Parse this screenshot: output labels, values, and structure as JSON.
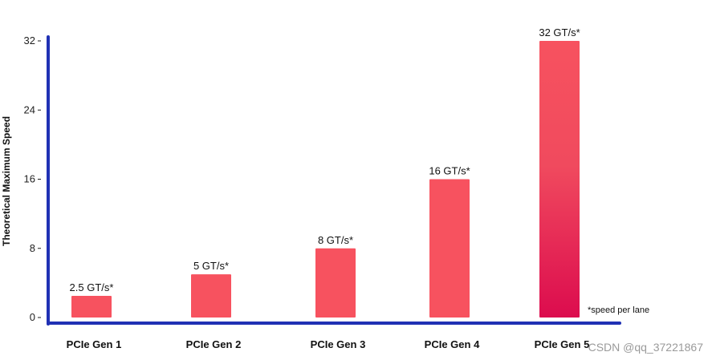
{
  "chart_data": {
    "type": "bar",
    "title": "",
    "xlabel": "",
    "ylabel": "Theoretical Maximum Speed",
    "categories": [
      "PCIe Gen 1",
      "PCIe Gen 2",
      "PCIe Gen 3",
      "PCIe Gen 4",
      "PCIe Gen 5"
    ],
    "values": [
      2.5,
      5,
      8,
      16,
      32
    ],
    "data_labels": [
      "2.5 GT/s*",
      "5 GT/s*",
      "8 GT/s*",
      "16 GT/s*",
      "32 GT/s*"
    ],
    "yticks": [
      0,
      8,
      16,
      24,
      32
    ],
    "ytick_labels": [
      "0",
      "8",
      "16",
      "24",
      "32"
    ],
    "ylim": [
      0,
      32
    ],
    "grid": false,
    "legend": null,
    "footnote": "*speed per lane",
    "colors": {
      "bar": "#f7525f",
      "bar_gradient_bottom": "#dc0c4e",
      "axis": "#2031b4"
    }
  },
  "watermark": "CSDN @qq_37221867"
}
